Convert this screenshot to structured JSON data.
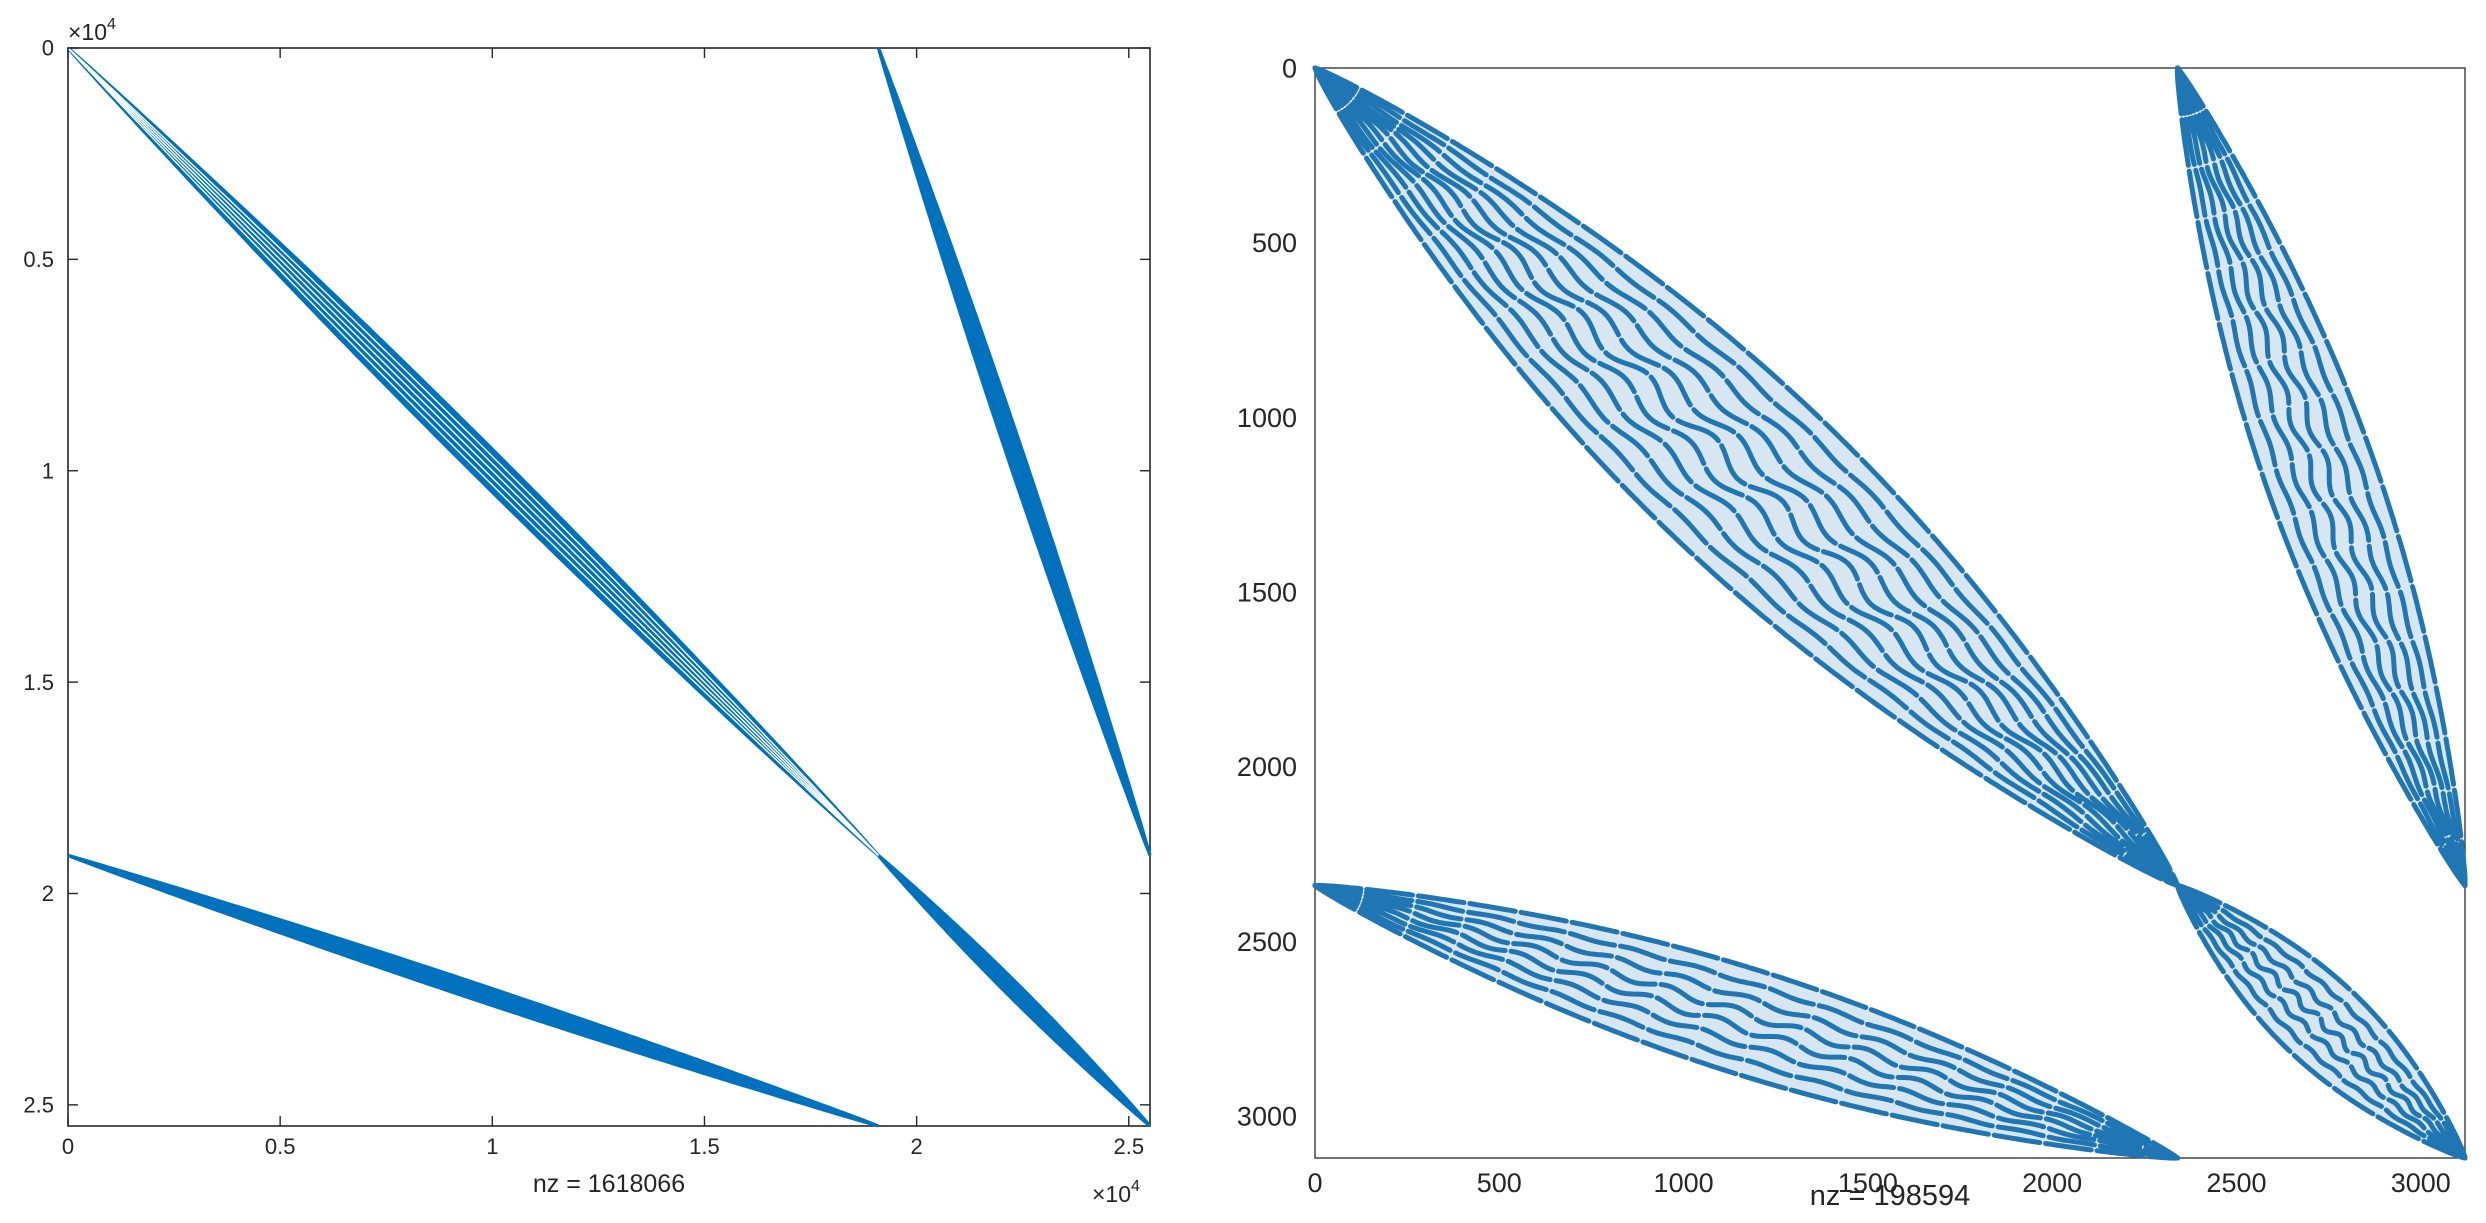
{
  "chart_data": [
    {
      "type": "scatter",
      "subtype": "sparsity-pattern",
      "title": "",
      "xlabel": "nz = 1618066",
      "ylabel": "",
      "nz": 1618066,
      "matrix_size": 25500,
      "xlim": [
        0,
        25500
      ],
      "ylim": [
        0,
        25500
      ],
      "y_reversed": true,
      "exponent_label": "×10",
      "exponent_power": "4",
      "x_ticks": [
        0,
        5000,
        10000,
        15000,
        20000,
        25000
      ],
      "x_tick_labels": [
        "0",
        "0.5",
        "1",
        "1.5",
        "2",
        "2.5"
      ],
      "y_ticks": [
        0,
        5000,
        10000,
        15000,
        20000,
        25000
      ],
      "y_tick_labels": [
        "0",
        "0.5",
        "1",
        "1.5",
        "2",
        "2.5"
      ],
      "marker_color": "#0072BD",
      "grid": false,
      "bands": [
        {
          "from": [
            0,
            0
          ],
          "to": [
            19100,
            19100
          ],
          "half_width": 360,
          "lines": 6,
          "style": "striped"
        },
        {
          "from": [
            19100,
            19100
          ],
          "to": [
            25500,
            25500
          ],
          "half_width": 170,
          "lines": 0,
          "style": "solid"
        },
        {
          "from": [
            19100,
            0
          ],
          "to": [
            25500,
            19100
          ],
          "half_width": 190,
          "lines": 0,
          "style": "solid"
        },
        {
          "from": [
            0,
            19100
          ],
          "to": [
            19100,
            25500
          ],
          "half_width": 190,
          "lines": 0,
          "style": "solid"
        }
      ]
    },
    {
      "type": "scatter",
      "subtype": "sparsity-pattern",
      "title": "",
      "xlabel": "nz = 198594",
      "ylabel": "",
      "nz": 198594,
      "matrix_size": 3120,
      "xlim": [
        0,
        3120
      ],
      "ylim": [
        0,
        3120
      ],
      "y_reversed": true,
      "x_ticks": [
        0,
        500,
        1000,
        1500,
        2000,
        2500,
        3000
      ],
      "x_tick_labels": [
        "0",
        "500",
        "1000",
        "1500",
        "2000",
        "2500",
        "3000"
      ],
      "y_ticks": [
        0,
        500,
        1000,
        1500,
        2000,
        2500,
        3000
      ],
      "y_tick_labels": [
        "0",
        "500",
        "1000",
        "1500",
        "2000",
        "2500",
        "3000"
      ],
      "marker_color": "#1f77b4",
      "grid": false,
      "bands": [
        {
          "from": [
            0,
            0
          ],
          "to": [
            2340,
            2340
          ],
          "half_width": 260,
          "lines": 10,
          "style": "wavy"
        },
        {
          "from": [
            2340,
            2340
          ],
          "to": [
            3120,
            3120
          ],
          "half_width": 120,
          "lines": 6,
          "style": "wavy"
        },
        {
          "from": [
            2340,
            0
          ],
          "to": [
            3120,
            2340
          ],
          "half_width": 150,
          "lines": 7,
          "style": "wavy"
        },
        {
          "from": [
            0,
            2340
          ],
          "to": [
            2340,
            3120
          ],
          "half_width": 150,
          "lines": 7,
          "style": "wavy"
        }
      ]
    }
  ]
}
